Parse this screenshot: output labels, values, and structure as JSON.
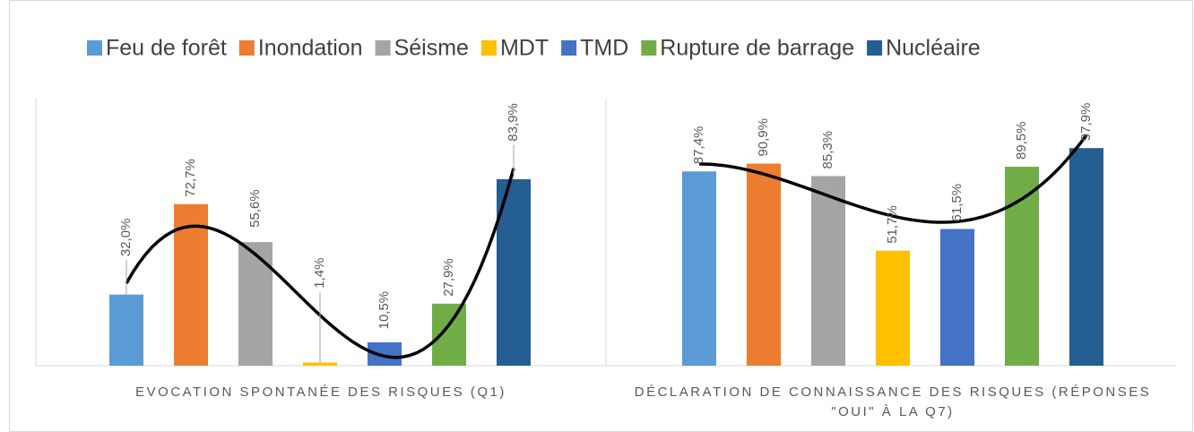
{
  "chart_data": {
    "type": "bar",
    "categories": [
      "EVOCATION SPONTANÉE DES RISQUES (Q1)",
      "DÉCLARATION DE CONNAISSANCE DES RISQUES (RÉPONSES \"OUI\" À LA Q7)"
    ],
    "series": [
      {
        "name": "Feu de forêt",
        "color": "#5b9bd5",
        "values": [
          32.0,
          87.4
        ],
        "value_labels": [
          "32,0%",
          "87,4%"
        ]
      },
      {
        "name": "Inondation",
        "color": "#ed7d31",
        "values": [
          72.7,
          90.9
        ],
        "value_labels": [
          "72,7%",
          "90,9%"
        ]
      },
      {
        "name": "Séisme",
        "color": "#a5a5a5",
        "values": [
          55.6,
          85.3
        ],
        "value_labels": [
          "55,6%",
          "85,3%"
        ]
      },
      {
        "name": "MDT",
        "color": "#ffc000",
        "values": [
          1.4,
          51.7
        ],
        "value_labels": [
          "1,4%",
          "51,7%"
        ]
      },
      {
        "name": "TMD",
        "color": "#4472c4",
        "values": [
          10.5,
          61.5
        ],
        "value_labels": [
          "10,5%",
          "61,5%"
        ]
      },
      {
        "name": "Rupture de barrage",
        "color": "#70ad47",
        "values": [
          27.9,
          89.5
        ],
        "value_labels": [
          "27,9%",
          "89,5%"
        ]
      },
      {
        "name": "Nucléaire",
        "color": "#255e91",
        "values": [
          83.9,
          97.9
        ],
        "value_labels": [
          "83,9%",
          "97,9%"
        ]
      }
    ],
    "trendline_color": "#000000"
  }
}
